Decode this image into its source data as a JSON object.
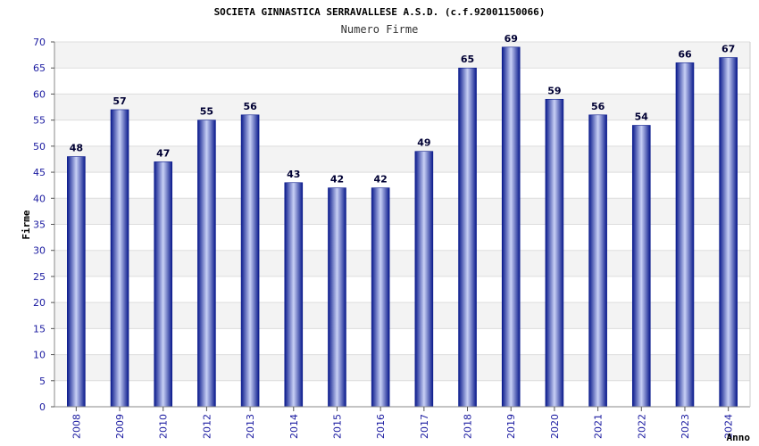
{
  "chart_data": {
    "type": "bar",
    "title": "SOCIETA GINNASTICA SERRAVALLESE A.S.D. (c.f.92001150066)",
    "subtitle": "Numero Firme",
    "xlabel": "Anno",
    "ylabel": "Firme",
    "ylim": [
      0,
      70
    ],
    "ytick_step": 5,
    "grid": true,
    "categories": [
      "2008",
      "2009",
      "2010",
      "2012",
      "2013",
      "2014",
      "2015",
      "2016",
      "2017",
      "2018",
      "2019",
      "2020",
      "2021",
      "2022",
      "2023",
      "2024"
    ],
    "values": [
      48,
      57,
      47,
      55,
      56,
      43,
      42,
      42,
      49,
      65,
      69,
      59,
      56,
      54,
      66,
      67
    ]
  },
  "colors": {
    "bar_dark": "#0a1a8c",
    "bar_light": "#c8d0f5",
    "band": "#f3f3f3",
    "tick_text": "#1a1aa0"
  }
}
